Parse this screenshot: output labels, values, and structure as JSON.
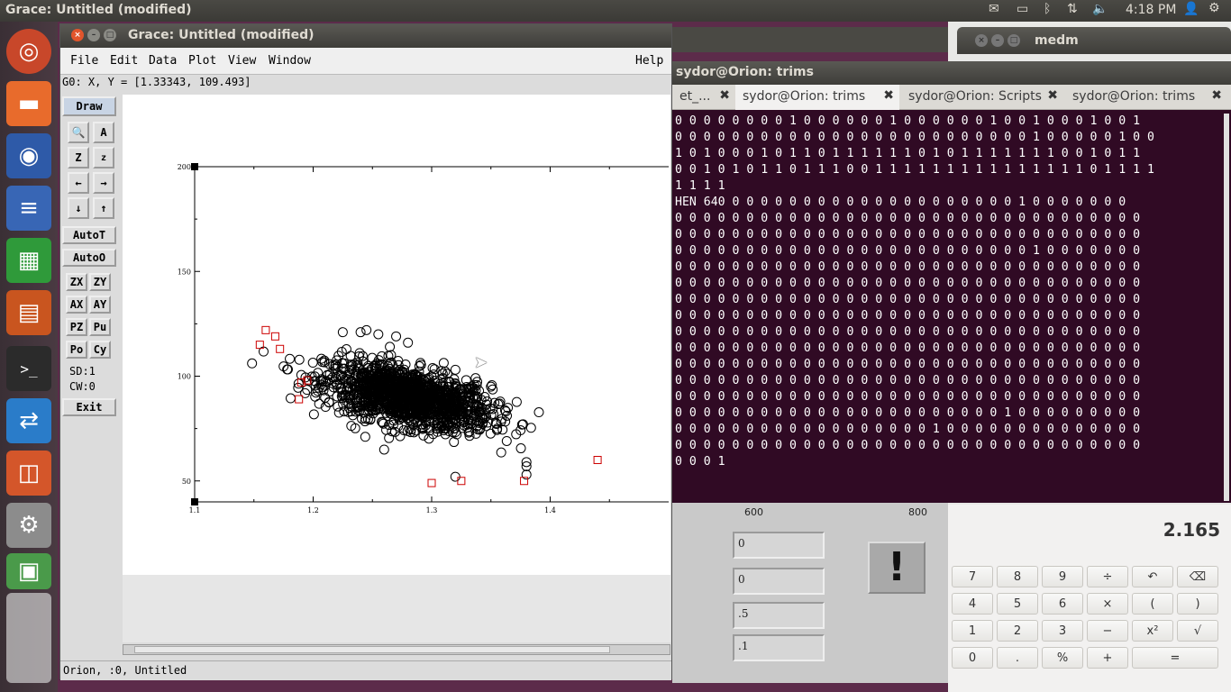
{
  "top_panel": {
    "title": "Grace: Untitled (modified)",
    "time": "4:18 PM",
    "icons": [
      "mail-icon",
      "battery-icon",
      "bluetooth-icon",
      "network-icon",
      "volume-icon",
      "user-icon",
      "gear-icon"
    ]
  },
  "launcher": {
    "items": [
      "ubuntu-dash-icon",
      "files-icon",
      "firefox-icon",
      "writer-icon",
      "calc-icon",
      "impress-icon",
      "terminal-icon",
      "teamviewer-icon",
      "software-center-icon",
      "system-settings-icon",
      "workspace-switcher-icon"
    ]
  },
  "medm": {
    "title": "medm"
  },
  "terminal": {
    "title": "sydor@Orion: trims",
    "tabs": [
      {
        "label": "et_..."
      },
      {
        "label": "sydor@Orion: trims"
      },
      {
        "label": "sydor@Orion: Scripts"
      },
      {
        "label": "sydor@Orion: trims"
      }
    ],
    "lines": [
      "0 0 0 0 0 0 0 0 1 0 0 0 0 0 0 1 0 0 0 0 0 0 1 0 0 1 0 0 0 1 0 0 1",
      "0 0 0 0 0 0 0 0 0 0 0 0 0 0 0 0 0 0 0 0 0 0 0 0 0 1 0 0 0 0 0 1 0 0",
      "1 0 1 0 0 0 1 0 1 1 0 1 1 1 1 1 1 0 1 0 1 1 1 1 1 1 1 0 0 1 0 1 1",
      "0 0 1 0 1 0 1 1 0 1 1 1 0 0 1 1 1 1 1 1 1 1 1 1 1 1 1 1 1 0 1 1 1 1",
      "1 1 1 1",
      "HEN 640 0 0 0 0 0 0 0 0 0 0 0 0 0 0 0 0 0 0 0 0 1 0 0 0 0 0 0 0",
      "0 0 0 0 0 0 0 0 0 0 0 0 0 0 0 0 0 0 0 0 0 0 0 0 0 0 0 0 0 0 0 0 0",
      "0 0 0 0 0 0 0 0 0 0 0 0 0 0 0 0 0 0 0 0 0 0 0 0 0 0 0 0 0 0 0 0 0",
      "0 0 0 0 0 0 0 0 0 0 0 0 0 0 0 0 0 0 0 0 0 0 0 0 0 1 0 0 0 0 0 0 0",
      "0 0 0 0 0 0 0 0 0 0 0 0 0 0 0 0 0 0 0 0 0 0 0 0 0 0 0 0 0 0 0 0 0",
      "0 0 0 0 0 0 0 0 0 0 0 0 0 0 0 0 0 0 0 0 0 0 0 0 0 0 0 0 0 0 0 0 0",
      "0 0 0 0 0 0 0 0 0 0 0 0 0 0 0 0 0 0 0 0 0 0 0 0 0 0 0 0 0 0 0 0 0",
      "0 0 0 0 0 0 0 0 0 0 0 0 0 0 0 0 0 0 0 0 0 0 0 0 0 0 0 0 0 0 0 0 0",
      "0 0 0 0 0 0 0 0 0 0 0 0 0 0 0 0 0 0 0 0 0 0 0 0 0 0 0 0 0 0 0 0 0",
      "0 0 0 0 0 0 0 0 0 0 0 0 0 0 0 0 0 0 0 0 0 0 0 0 0 0 0 0 0 0 0 0 0",
      "0 0 0 0 0 0 0 0 0 0 0 0 0 0 0 0 0 0 0 0 0 0 0 0 0 0 0 0 0 0 0 0 0",
      "0 0 0 0 0 0 0 0 0 0 0 0 0 0 0 0 0 0 0 0 0 0 0 0 0 0 0 0 0 0 0 0 0",
      "0 0 0 0 0 0 0 0 0 0 0 0 0 0 0 0 0 0 0 0 0 0 0 0 0 0 0 0 0 0 0 0 0",
      "0 0 0 0 0 0 0 0 0 0 0 0 0 0 0 0 0 0 0 0 0 0 0 1 0 0 0 0 0 0 0 0 0",
      "0 0 0 0 0 0 0 0 0 0 0 0 0 0 0 0 0 0 1 0 0 0 0 0 0 0 0 0 0 0 0 0 0",
      "0 0 0 0 0 0 0 0 0 0 0 0 0 0 0 0 0 0 0 0 0 0 0 0 0 0 0 0 0 0 0 0 0",
      "0 0 0 1"
    ]
  },
  "edm_panel": {
    "axis_labels": [
      "600",
      "800"
    ],
    "fields": [
      "0",
      "0",
      ".5",
      ".1"
    ],
    "bang_label": "!"
  },
  "calculator": {
    "display": "2.165",
    "rows": [
      [
        "7",
        "8",
        "9",
        "÷",
        "↶",
        "⌫"
      ],
      [
        "4",
        "5",
        "6",
        "×",
        "(",
        ")"
      ],
      [
        "1",
        "2",
        "3",
        "−",
        "x²",
        "√"
      ],
      [
        "0",
        ".",
        "%",
        "+",
        "="
      ]
    ]
  },
  "grace": {
    "title": "Grace: Untitled (modified)",
    "menus": [
      "File",
      "Edit",
      "Data",
      "Plot",
      "View",
      "Window"
    ],
    "help": "Help",
    "locator": "G0: X, Y = [1.33343, 109.493]",
    "tools": {
      "draw": "Draw",
      "autot": "AutoT",
      "autoo": "AutoO",
      "zx": "ZX",
      "zy": "ZY",
      "ax": "AX",
      "ay": "AY",
      "pz": "PZ",
      "pu": "Pu",
      "po": "Po",
      "cy": "Cy",
      "sd": "SD:1",
      "cw": "CW:0",
      "exit": "Exit"
    },
    "status": "Orion, :0, Untitled"
  },
  "chart_data": {
    "type": "scatter",
    "title": "",
    "xlabel": "",
    "ylabel": "",
    "xlim": [
      1.1,
      1.5
    ],
    "ylim": [
      40,
      200
    ],
    "x_ticks": [
      "1.1",
      "1.2",
      "1.3",
      "1.4"
    ],
    "y_ticks": [
      "50",
      "100",
      "150",
      "200"
    ],
    "grid": false,
    "series": [
      {
        "marker": "circle",
        "color": "#000000",
        "cluster": {
          "center": [
            1.28,
            90
          ],
          "spread": [
            0.035,
            8
          ],
          "count": 1400
        },
        "points": [
          [
            1.225,
            121
          ],
          [
            1.24,
            121
          ],
          [
            1.245,
            122
          ],
          [
            1.255,
            120
          ],
          [
            1.27,
            119
          ],
          [
            1.28,
            116
          ],
          [
            1.32,
            52
          ],
          [
            1.38,
            59
          ],
          [
            1.38,
            57
          ],
          [
            1.38,
            53
          ],
          [
            1.34,
            93
          ],
          [
            1.35,
            95
          ]
        ]
      },
      {
        "marker": "square",
        "color": "#cc0000",
        "points": [
          [
            1.155,
            115
          ],
          [
            1.16,
            122
          ],
          [
            1.168,
            119
          ],
          [
            1.172,
            113
          ],
          [
            1.19,
            97
          ],
          [
            1.195,
            98
          ],
          [
            1.188,
            89
          ],
          [
            1.3,
            49
          ],
          [
            1.325,
            50
          ],
          [
            1.378,
            50
          ],
          [
            1.44,
            60
          ]
        ]
      }
    ]
  }
}
